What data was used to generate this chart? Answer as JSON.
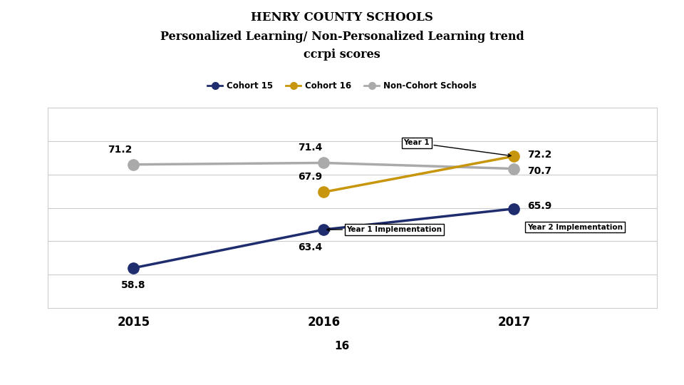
{
  "title_line1": "HENRY COUNTY SCHOOLS",
  "title_line2": "Personalized Learning/ Non-Personalized Learning trend",
  "title_line3": "ccrpi scores",
  "years": [
    2015,
    2016,
    2017
  ],
  "cohort15": [
    58.8,
    63.4,
    65.9
  ],
  "cohort16_years": [
    2016,
    2017
  ],
  "cohort16": [
    67.9,
    72.2
  ],
  "non_cohort": [
    71.2,
    71.4,
    70.7
  ],
  "cohort15_color": "#1f2d6e",
  "cohort16_color": "#c8960c",
  "non_cohort_color": "#aaaaaa",
  "background_color": "#ffffff",
  "chart_bg": "#ffffff",
  "border_color": "#cccccc",
  "annotation_year1_label": "Year 1 Implementation",
  "annotation_year2_label": "Year 2 Implementation",
  "year1_label": "Year 1",
  "footer_text": "16",
  "footer_color": "#d4a017",
  "footer_dark_color": "#1f2d6e"
}
